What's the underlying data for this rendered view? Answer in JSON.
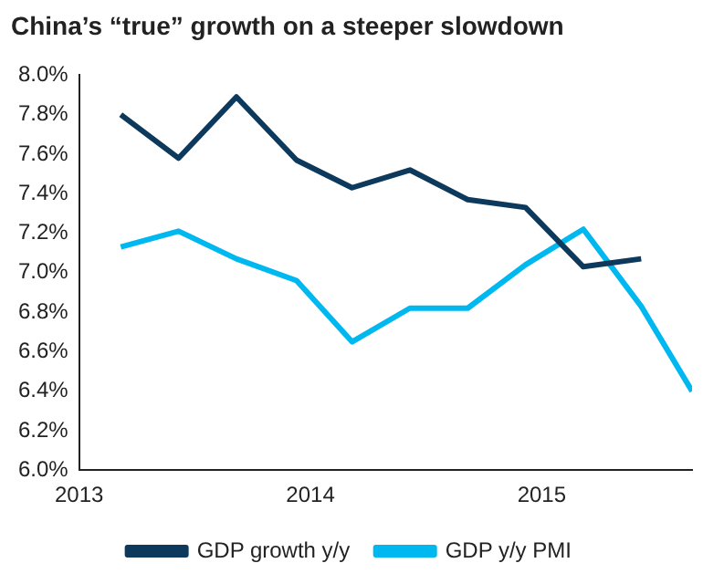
{
  "chart_data": {
    "type": "line",
    "title": "China’s “true” growth on a steeper slowdown",
    "xlim": [
      2013,
      2015.65
    ],
    "xticks": [
      2013,
      2014,
      2015
    ],
    "ylim": [
      6.0,
      8.0
    ],
    "yticks": [
      {
        "value": 6.0,
        "label": "6.0%"
      },
      {
        "value": 6.2,
        "label": "6.2%"
      },
      {
        "value": 6.4,
        "label": "6.4%"
      },
      {
        "value": 6.6,
        "label": "6.6%"
      },
      {
        "value": 6.8,
        "label": "6.8%"
      },
      {
        "value": 7.0,
        "label": "7.0%"
      },
      {
        "value": 7.2,
        "label": "7.2%"
      },
      {
        "value": 7.4,
        "label": "7.4%"
      },
      {
        "value": 7.6,
        "label": "7.6%"
      },
      {
        "value": 7.8,
        "label": "7.8%"
      },
      {
        "value": 8.0,
        "label": "8.0%"
      }
    ],
    "grid": false,
    "legend": "bottom",
    "marker": "none",
    "line_style": "solid",
    "series": [
      {
        "name": "GDP growth y/y",
        "color": "#0d3a5c",
        "x": [
          2013.18,
          2013.43,
          2013.68,
          2013.94,
          2014.18,
          2014.43,
          2014.68,
          2014.93,
          2015.18,
          2015.43
        ],
        "values": [
          7.8,
          7.58,
          7.89,
          7.57,
          7.43,
          7.52,
          7.37,
          7.33,
          7.03,
          7.07
        ]
      },
      {
        "name": "GDP y/y PMI",
        "color": "#00b8f0",
        "x": [
          2013.18,
          2013.43,
          2013.68,
          2013.94,
          2014.18,
          2014.43,
          2014.68,
          2014.93,
          2015.18,
          2015.43,
          2015.65
        ],
        "values": [
          7.13,
          7.21,
          7.07,
          6.96,
          6.65,
          6.82,
          6.82,
          7.04,
          7.22,
          6.83,
          6.4
        ]
      }
    ]
  }
}
